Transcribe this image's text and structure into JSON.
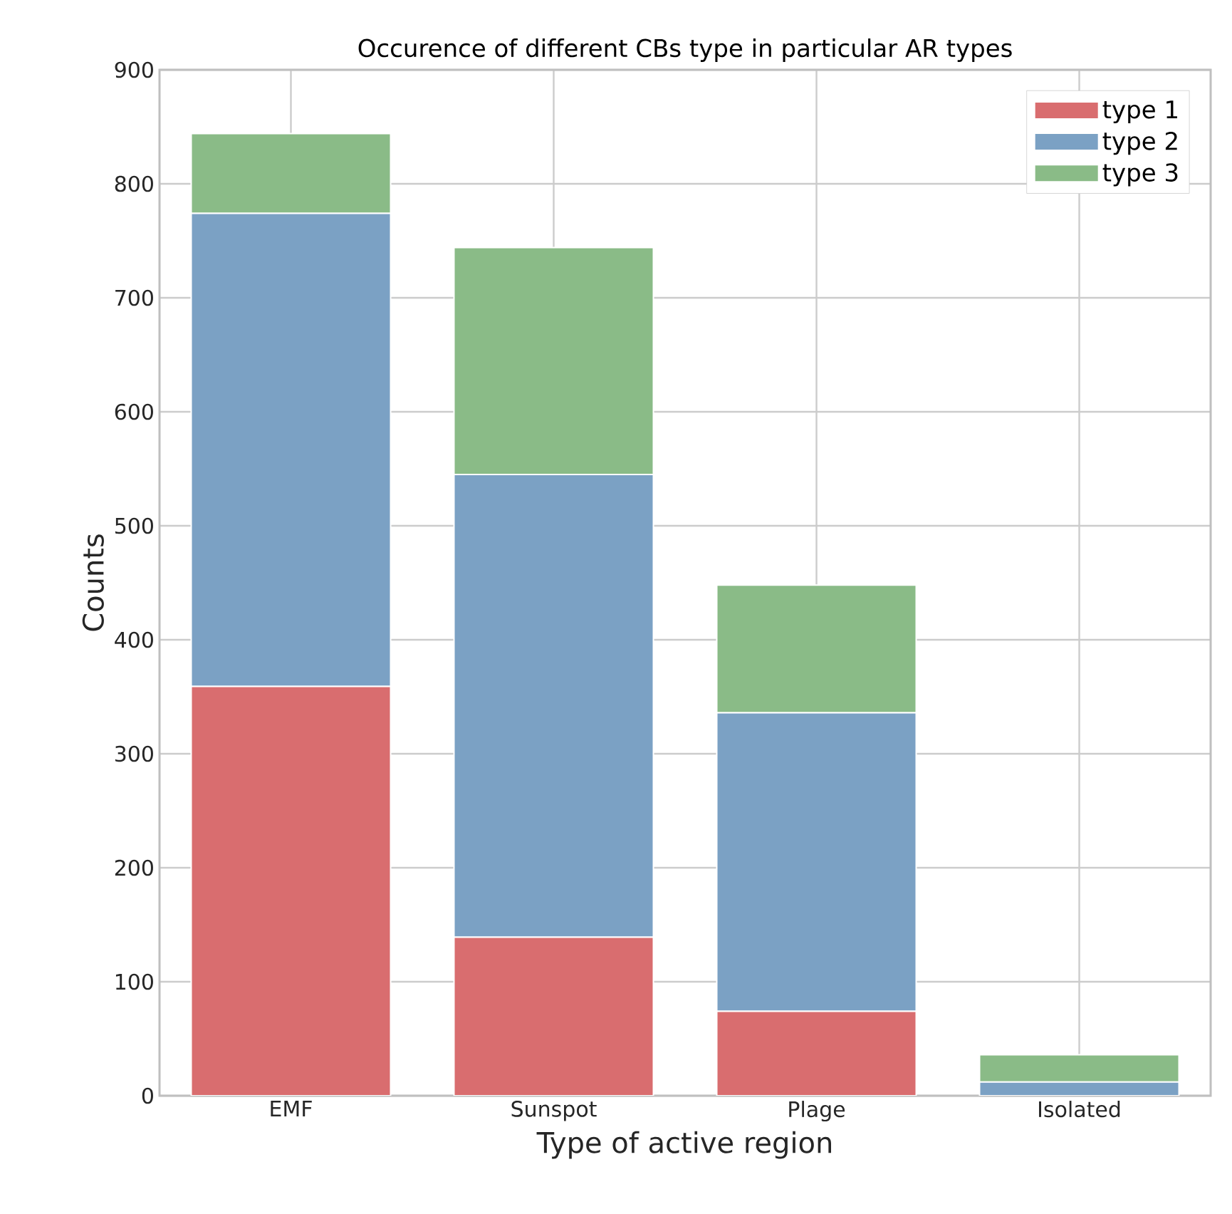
{
  "chart_data": {
    "type": "bar",
    "stacked": true,
    "title": "Occurence of different CBs type in particular AR types",
    "xlabel": "Type of active region",
    "ylabel": "Counts",
    "categories": [
      "EMF",
      "Sunspot",
      "Plage",
      "Isolated"
    ],
    "series": [
      {
        "name": "type 1",
        "color": "#d96d6f",
        "values": [
          359,
          139,
          74,
          0
        ]
      },
      {
        "name": "type 2",
        "color": "#7ba1c4",
        "values": [
          415,
          406,
          262,
          12
        ]
      },
      {
        "name": "type 3",
        "color": "#8abb87",
        "values": [
          70,
          199,
          112,
          24
        ]
      }
    ],
    "ylim": [
      0,
      900
    ],
    "yticks": [
      0,
      100,
      200,
      300,
      400,
      500,
      600,
      700,
      800,
      900
    ],
    "grid": true,
    "legend": "top right"
  }
}
